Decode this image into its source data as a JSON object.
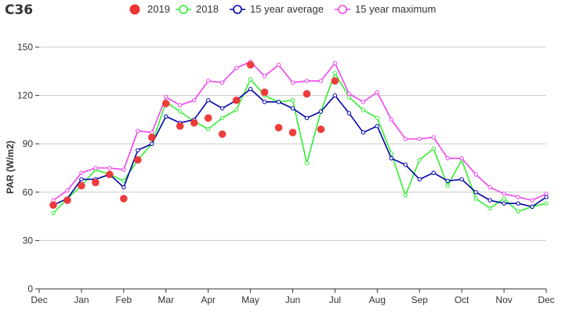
{
  "chart_data": {
    "type": "line",
    "title": "C36",
    "ylabel": "PAR (W/m2)",
    "xlabel": "",
    "ylim": [
      0,
      150
    ],
    "yticks": [
      0,
      30,
      60,
      90,
      120,
      150
    ],
    "xlim": [
      0,
      36
    ],
    "xticks": [
      {
        "label": "Dec",
        "x": 0
      },
      {
        "label": "Jan",
        "x": 3
      },
      {
        "label": "Feb",
        "x": 6
      },
      {
        "label": "Mar",
        "x": 9
      },
      {
        "label": "Apr",
        "x": 12
      },
      {
        "label": "May",
        "x": 15
      },
      {
        "label": "Jun",
        "x": 18
      },
      {
        "label": "Jul",
        "x": 21
      },
      {
        "label": "Aug",
        "x": 24
      },
      {
        "label": "Sep",
        "x": 27
      },
      {
        "label": "Oct",
        "x": 30
      },
      {
        "label": "Nov",
        "x": 33
      },
      {
        "label": "Dec",
        "x": 36
      }
    ],
    "grid": true,
    "legend_position": "top",
    "series": [
      {
        "name": "2019",
        "color": "#ee3333",
        "style": "dots",
        "x": [
          1,
          2,
          3,
          4,
          5,
          6,
          7,
          8,
          9,
          10,
          11,
          12,
          13,
          14,
          15,
          16,
          17,
          18,
          19,
          20,
          21
        ],
        "values": [
          52,
          55,
          64,
          66,
          71,
          56,
          80,
          94,
          115,
          101,
          103,
          106,
          96,
          117,
          139,
          122,
          100,
          97,
          121,
          99,
          129
        ]
      },
      {
        "name": "2018",
        "color": "#33ee33",
        "style": "line",
        "x": [
          1,
          2,
          3,
          4,
          5,
          6,
          7,
          8,
          9,
          10,
          11,
          12,
          13,
          14,
          15,
          16,
          17,
          18,
          19,
          20,
          21,
          22,
          23,
          24,
          25,
          26,
          27,
          28,
          29,
          30,
          31,
          32,
          33,
          34,
          35,
          36
        ],
        "values": [
          47,
          56,
          64,
          74,
          71,
          67,
          80,
          90,
          116,
          110,
          104,
          99,
          106,
          111,
          130,
          120,
          116,
          117,
          78,
          110,
          134,
          119,
          111,
          106,
          84,
          58,
          80,
          87,
          64,
          80,
          56,
          50,
          56,
          48,
          51,
          53
        ]
      },
      {
        "name": "15 year average",
        "color": "#0000aa",
        "style": "line",
        "x": [
          1,
          2,
          3,
          4,
          5,
          6,
          7,
          8,
          9,
          10,
          11,
          12,
          13,
          14,
          15,
          16,
          17,
          18,
          19,
          20,
          21,
          22,
          23,
          24,
          25,
          26,
          27,
          28,
          29,
          30,
          31,
          32,
          33,
          34,
          35,
          36
        ],
        "values": [
          52,
          56,
          68,
          68,
          71,
          63,
          86,
          90,
          107,
          103,
          105,
          117,
          112,
          117,
          124,
          116,
          116,
          112,
          106,
          110,
          120,
          109,
          97,
          101,
          81,
          77,
          68,
          72,
          67,
          68,
          60,
          55,
          53,
          53,
          51,
          57
        ]
      },
      {
        "name": "15 year maximum",
        "color": "#ee44ee",
        "style": "line",
        "x": [
          1,
          2,
          3,
          4,
          5,
          6,
          7,
          8,
          9,
          10,
          11,
          12,
          13,
          14,
          15,
          16,
          17,
          18,
          19,
          20,
          21,
          22,
          23,
          24,
          25,
          26,
          27,
          28,
          29,
          30,
          31,
          32,
          33,
          34,
          35,
          36
        ],
        "values": [
          55,
          61,
          72,
          75,
          75,
          74,
          98,
          97,
          119,
          114,
          117,
          129,
          128,
          137,
          141,
          132,
          139,
          128,
          129,
          129,
          140,
          121,
          116,
          122,
          105,
          93,
          93,
          94,
          81,
          81,
          71,
          63,
          59,
          57,
          55,
          59
        ]
      }
    ]
  }
}
